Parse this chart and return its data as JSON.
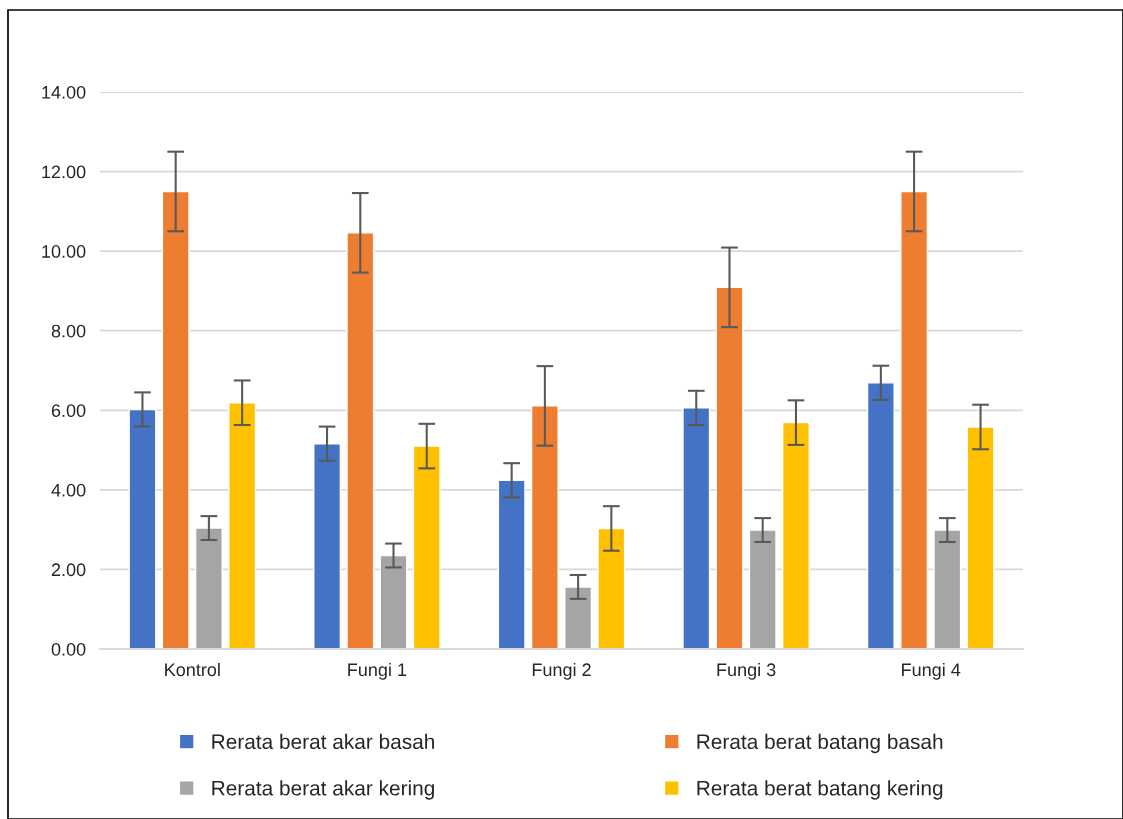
{
  "chart_data": {
    "type": "bar",
    "categories": [
      "Kontrol",
      "Fungi 1",
      "Fungi 2",
      "Fungi 3",
      "Fungi 4"
    ],
    "series": [
      {
        "name": "Rerata berat akar basah",
        "color": "#4472c4",
        "values": [
          6.02,
          5.16,
          4.24,
          6.06,
          6.69
        ],
        "errors": [
          0.43,
          0.43,
          0.43,
          0.43,
          0.43
        ]
      },
      {
        "name": "Rerata berat batang basah",
        "color": "#ed7d31",
        "values": [
          11.5,
          10.46,
          6.11,
          9.09,
          11.5
        ],
        "errors": [
          1.0,
          1.0,
          1.0,
          1.0,
          1.0
        ]
      },
      {
        "name": "Rerata berat akar kering",
        "color": "#a5a5a5",
        "values": [
          3.04,
          2.35,
          1.56,
          2.99,
          2.99
        ],
        "errors": [
          0.3,
          0.3,
          0.3,
          0.3,
          0.3
        ]
      },
      {
        "name": "Rerata berat batang kering",
        "color": "#ffc000",
        "values": [
          6.19,
          5.1,
          3.03,
          5.69,
          5.58
        ],
        "errors": [
          0.56,
          0.56,
          0.56,
          0.56,
          0.56
        ]
      }
    ],
    "ylim": [
      0,
      14
    ],
    "yticks": [
      {
        "value": 0,
        "label": "0.00"
      },
      {
        "value": 2,
        "label": "2.00"
      },
      {
        "value": 4,
        "label": "4.00"
      },
      {
        "value": 6,
        "label": "6.00"
      },
      {
        "value": 8,
        "label": "8.00"
      },
      {
        "value": 10,
        "label": "10.00"
      },
      {
        "value": 12,
        "label": "12.00"
      },
      {
        "value": 14,
        "label": "14.00"
      }
    ],
    "grid": "y",
    "legend": "bottom"
  }
}
